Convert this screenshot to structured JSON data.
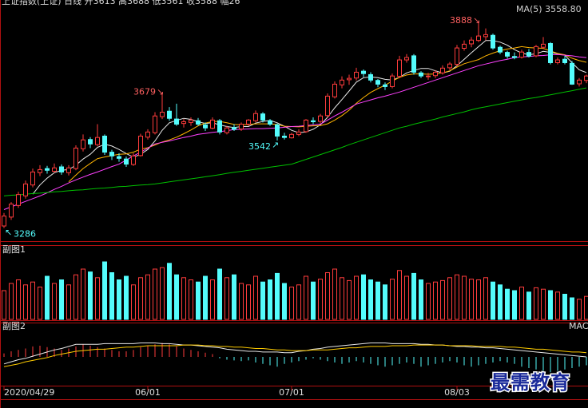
{
  "header": "上证指数(上证) 日线 开3613 高3688 低3561 收3588 幅26",
  "ma_label": "MA(5) 3558.80",
  "watermark": "最需教育",
  "chart_data": {
    "type": "candlestick",
    "categories": [
      "2020/04/29",
      null,
      null,
      null,
      null,
      null,
      null,
      null,
      null,
      null,
      null,
      null,
      null,
      null,
      null,
      null,
      null,
      null,
      null,
      null,
      "06/01",
      null,
      null,
      null,
      null,
      null,
      null,
      null,
      null,
      null,
      null,
      null,
      null,
      null,
      null,
      null,
      null,
      null,
      null,
      null,
      "07/01",
      null,
      null,
      null,
      null,
      null,
      null,
      null,
      null,
      null,
      null,
      null,
      null,
      null,
      null,
      null,
      null,
      null,
      null,
      null,
      null,
      null,
      null,
      "08/03",
      null,
      null,
      null,
      null,
      null,
      null,
      null,
      null,
      null,
      null,
      null,
      null,
      null,
      null,
      null,
      null,
      null,
      null
    ],
    "ohlc": [
      [
        3292,
        3330,
        3286,
        3321
      ],
      [
        3318,
        3362,
        3310,
        3356
      ],
      [
        3352,
        3392,
        3345,
        3384
      ],
      [
        3380,
        3425,
        3372,
        3415
      ],
      [
        3412,
        3460,
        3405,
        3450
      ],
      [
        3448,
        3470,
        3438,
        3457
      ],
      [
        3460,
        3468,
        3445,
        3455
      ],
      [
        3452,
        3475,
        3448,
        3462
      ],
      [
        3465,
        3472,
        3442,
        3450
      ],
      [
        3448,
        3470,
        3440,
        3462
      ],
      [
        3460,
        3528,
        3455,
        3520
      ],
      [
        3518,
        3560,
        3510,
        3544
      ],
      [
        3545,
        3552,
        3520,
        3532
      ],
      [
        3530,
        3590,
        3525,
        3551
      ],
      [
        3555,
        3560,
        3500,
        3508
      ],
      [
        3508,
        3515,
        3485,
        3497
      ],
      [
        3495,
        3505,
        3480,
        3490
      ],
      [
        3488,
        3495,
        3465,
        3473
      ],
      [
        3472,
        3505,
        3468,
        3497
      ],
      [
        3498,
        3562,
        3495,
        3555
      ],
      [
        3552,
        3575,
        3545,
        3567
      ],
      [
        3565,
        3625,
        3560,
        3614
      ],
      [
        3612,
        3679,
        3605,
        3625
      ],
      [
        3628,
        3640,
        3600,
        3607
      ],
      [
        3605,
        3650,
        3585,
        3590
      ],
      [
        3592,
        3605,
        3580,
        3597
      ],
      [
        3595,
        3610,
        3585,
        3602
      ],
      [
        3600,
        3608,
        3585,
        3590
      ],
      [
        3588,
        3595,
        3570,
        3579
      ],
      [
        3578,
        3610,
        3575,
        3602
      ],
      [
        3600,
        3605,
        3560,
        3567
      ],
      [
        3565,
        3585,
        3560,
        3579
      ],
      [
        3580,
        3590,
        3570,
        3575
      ],
      [
        3576,
        3595,
        3570,
        3590
      ],
      [
        3590,
        3605,
        3585,
        3602
      ],
      [
        3600,
        3630,
        3595,
        3621
      ],
      [
        3620,
        3625,
        3595,
        3602
      ],
      [
        3600,
        3605,
        3585,
        3590
      ],
      [
        3588,
        3592,
        3542,
        3555
      ],
      [
        3555,
        3565,
        3545,
        3551
      ],
      [
        3550,
        3565,
        3548,
        3560
      ],
      [
        3560,
        3575,
        3555,
        3567
      ],
      [
        3568,
        3605,
        3565,
        3602
      ],
      [
        3600,
        3610,
        3590,
        3597
      ],
      [
        3598,
        3620,
        3592,
        3614
      ],
      [
        3615,
        3680,
        3610,
        3672
      ],
      [
        3670,
        3715,
        3665,
        3707
      ],
      [
        3705,
        3730,
        3695,
        3719
      ],
      [
        3720,
        3735,
        3705,
        3724
      ],
      [
        3725,
        3755,
        3718,
        3742
      ],
      [
        3745,
        3750,
        3728,
        3738
      ],
      [
        3735,
        3742,
        3712,
        3719
      ],
      [
        3718,
        3722,
        3698,
        3707
      ],
      [
        3705,
        3712,
        3690,
        3700
      ],
      [
        3700,
        3738,
        3695,
        3731
      ],
      [
        3730,
        3790,
        3725,
        3778
      ],
      [
        3778,
        3795,
        3770,
        3785
      ],
      [
        3790,
        3795,
        3735,
        3742
      ],
      [
        3740,
        3745,
        3725,
        3731
      ],
      [
        3730,
        3740,
        3720,
        3731
      ],
      [
        3732,
        3748,
        3725,
        3742
      ],
      [
        3740,
        3762,
        3735,
        3754
      ],
      [
        3755,
        3772,
        3748,
        3766
      ],
      [
        3765,
        3822,
        3760,
        3813
      ],
      [
        3812,
        3835,
        3805,
        3824
      ],
      [
        3825,
        3845,
        3815,
        3836
      ],
      [
        3835,
        3888,
        3830,
        3848
      ],
      [
        3846,
        3870,
        3835,
        3852
      ],
      [
        3850,
        3855,
        3808,
        3813
      ],
      [
        3815,
        3820,
        3795,
        3801
      ],
      [
        3800,
        3805,
        3782,
        3789
      ],
      [
        3788,
        3800,
        3780,
        3785
      ],
      [
        3786,
        3808,
        3782,
        3801
      ],
      [
        3800,
        3810,
        3785,
        3789
      ],
      [
        3790,
        3822,
        3786,
        3817
      ],
      [
        3815,
        3845,
        3810,
        3824
      ],
      [
        3826,
        3830,
        3765,
        3770
      ],
      [
        3770,
        3785,
        3765,
        3778
      ],
      [
        3780,
        3790,
        3765,
        3770
      ],
      [
        3768,
        3775,
        3705,
        3707
      ],
      [
        3708,
        3725,
        3700,
        3719
      ],
      [
        3718,
        3735,
        3710,
        3731
      ]
    ],
    "ylim": [
      3250,
      3930
    ],
    "up_color": "#ff3c3c",
    "down_color": "#54fcfc",
    "ma_lines": [
      {
        "color": "#e8e8e8",
        "values": [
          null,
          null,
          null,
          null,
          3385,
          3412,
          3432,
          3448,
          3455,
          3457,
          3470,
          3488,
          3502,
          3522,
          3531,
          3526,
          3516,
          3504,
          3493,
          3502,
          3516,
          3541,
          3572,
          3594,
          3601,
          3607,
          3604,
          3597,
          3592,
          3594,
          3588,
          3583,
          3580,
          3583,
          3583,
          3593,
          3598,
          3601,
          3594,
          3584,
          3572,
          3565,
          3567,
          3575,
          3588,
          3610,
          3638,
          3662,
          3687,
          3713,
          3726,
          3728,
          3726,
          3721,
          3719,
          3727,
          3740,
          3747,
          3753,
          3753,
          3746,
          3740,
          3745,
          3761,
          3780,
          3799,
          3817,
          3835,
          3835,
          3830,
          3821,
          3808,
          3798,
          3793,
          3796,
          3803,
          3800,
          3796,
          3792,
          3770,
          3749,
          3741
        ]
      },
      {
        "color": "#ffb400",
        "values": [
          null,
          null,
          null,
          null,
          null,
          null,
          null,
          null,
          null,
          3421,
          3441,
          3460,
          3475,
          3489,
          3494,
          3498,
          3502,
          3503,
          3508,
          3517,
          3521,
          3529,
          3538,
          3544,
          3552,
          3562,
          3573,
          3585,
          3593,
          3598,
          3598,
          3594,
          3589,
          3588,
          3589,
          3591,
          3591,
          3591,
          3589,
          3584,
          3583,
          3582,
          3584,
          3585,
          3586,
          3591,
          3602,
          3615,
          3631,
          3651,
          3668,
          3683,
          3694,
          3704,
          3716,
          3727,
          3734,
          3737,
          3737,
          3736,
          3737,
          3740,
          3746,
          3757,
          3767,
          3773,
          3779,
          3790,
          3798,
          3805,
          3810,
          3813,
          3817,
          3814,
          3813,
          3812,
          3804,
          3797,
          3793,
          3783,
          3776,
          3771
        ]
      },
      {
        "color": "#ff40ff",
        "values": [
          3340,
          3348,
          3356,
          3364,
          3372,
          3380,
          3389,
          3399,
          3408,
          3418,
          3427,
          3435,
          3443,
          3450,
          3458,
          3466,
          3473,
          3485,
          3497,
          3508,
          3520,
          3532,
          3537,
          3541,
          3546,
          3551,
          3555,
          3560,
          3563,
          3566,
          3568,
          3571,
          3574,
          3575,
          3576,
          3577,
          3577,
          3578,
          3579,
          3581,
          3583,
          3584,
          3586,
          3588,
          3590,
          3602,
          3614,
          3625,
          3637,
          3649,
          3655,
          3661,
          3667,
          3672,
          3678,
          3684,
          3691,
          3698,
          3705,
          3712,
          3719,
          3726,
          3733,
          3740,
          3747,
          3754,
          3761,
          3766,
          3771,
          3776,
          3780,
          3785,
          3787,
          3788,
          3790,
          3791,
          3793,
          3794,
          3792,
          3790,
          3787,
          3785
        ]
      },
      {
        "color": "#00c000",
        "values": [
          3380,
          3382,
          3383,
          3385,
          3387,
          3388,
          3390,
          3392,
          3393,
          3395,
          3397,
          3398,
          3400,
          3402,
          3403,
          3405,
          3407,
          3408,
          3410,
          3412,
          3413,
          3415,
          3418,
          3421,
          3424,
          3427,
          3430,
          3433,
          3436,
          3439,
          3442,
          3446,
          3449,
          3452,
          3455,
          3458,
          3461,
          3464,
          3467,
          3470,
          3473,
          3480,
          3487,
          3494,
          3501,
          3508,
          3515,
          3522,
          3530,
          3537,
          3544,
          3551,
          3558,
          3565,
          3572,
          3579,
          3584,
          3590,
          3595,
          3600,
          3605,
          3611,
          3616,
          3621,
          3626,
          3632,
          3637,
          3641,
          3645,
          3649,
          3653,
          3657,
          3661,
          3665,
          3668,
          3672,
          3676,
          3680,
          3684,
          3688,
          3692,
          3696
        ]
      }
    ],
    "volume": {
      "title": "副图1",
      "ylim": [
        0,
        100
      ],
      "values": [
        40,
        50,
        55,
        48,
        52,
        45,
        60,
        50,
        55,
        48,
        62,
        70,
        66,
        58,
        80,
        65,
        55,
        60,
        48,
        58,
        62,
        70,
        72,
        78,
        62,
        58,
        55,
        52,
        60,
        55,
        70,
        58,
        62,
        50,
        48,
        60,
        52,
        55,
        64,
        50,
        45,
        48,
        60,
        52,
        56,
        65,
        70,
        58,
        54,
        60,
        62,
        55,
        52,
        48,
        56,
        68,
        60,
        64,
        55,
        50,
        52,
        54,
        58,
        62,
        60,
        56,
        55,
        58,
        52,
        48,
        42,
        40,
        45,
        38,
        44,
        42,
        40,
        38,
        35,
        30,
        28,
        32
      ]
    },
    "macd": {
      "title": "副图2",
      "label": "MACD",
      "ylim": [
        -40,
        40
      ],
      "histogram": [
        5,
        8,
        10,
        12,
        15,
        16,
        14,
        12,
        10,
        12,
        15,
        18,
        16,
        14,
        12,
        10,
        8,
        8,
        10,
        14,
        16,
        18,
        20,
        18,
        15,
        12,
        10,
        8,
        6,
        4,
        -2,
        -4,
        -5,
        -6,
        -5,
        -8,
        -10,
        -12,
        -14,
        -10,
        -8,
        -6,
        -4,
        -2,
        -4,
        -6,
        -8,
        -10,
        -8,
        -6,
        -8,
        -10,
        -12,
        -14,
        -12,
        -10,
        -8,
        -10,
        -14,
        -12,
        -10,
        -8,
        -6,
        -8,
        -12,
        -14,
        -12,
        -10,
        -8,
        -6,
        -8,
        -10,
        -14,
        -16,
        -18,
        -20,
        -22,
        -20,
        -18,
        -16,
        -14,
        -12
      ],
      "dif": {
        "color": "#e8e8e8",
        "values": [
          -10,
          -7,
          -4,
          -2,
          1,
          4,
          7,
          10,
          12,
          15,
          18,
          18,
          18,
          18,
          19,
          19,
          19,
          19,
          19,
          20,
          20,
          20,
          19,
          19,
          18,
          17,
          17,
          16,
          15,
          14,
          13,
          11,
          10,
          9,
          8,
          8,
          7,
          7,
          7,
          6,
          6,
          8,
          9,
          11,
          12,
          14,
          15,
          16,
          17,
          18,
          19,
          20,
          20,
          20,
          19,
          19,
          19,
          19,
          18,
          18,
          17,
          17,
          16,
          15,
          15,
          14,
          14,
          13,
          13,
          12,
          11,
          10,
          9,
          8,
          7,
          6,
          5,
          4,
          3,
          2,
          1,
          0
        ]
      },
      "dea": {
        "color": "#ffcc00",
        "values": [
          -14,
          -12,
          -10,
          -7,
          -5,
          -3,
          -1,
          2,
          4,
          6,
          8,
          9,
          10,
          11,
          11,
          12,
          13,
          14,
          14,
          15,
          16,
          16,
          16,
          16,
          16,
          17,
          17,
          17,
          16,
          16,
          15,
          15,
          14,
          14,
          13,
          12,
          12,
          11,
          10,
          10,
          9,
          9,
          9,
          10,
          10,
          10,
          11,
          12,
          13,
          13,
          14,
          15,
          15,
          15,
          16,
          16,
          16,
          17,
          17,
          17,
          17,
          17,
          16,
          16,
          16,
          16,
          15,
          15,
          15,
          15,
          14,
          14,
          13,
          12,
          11,
          11,
          10,
          9,
          8,
          7,
          7,
          6
        ]
      }
    }
  }
}
